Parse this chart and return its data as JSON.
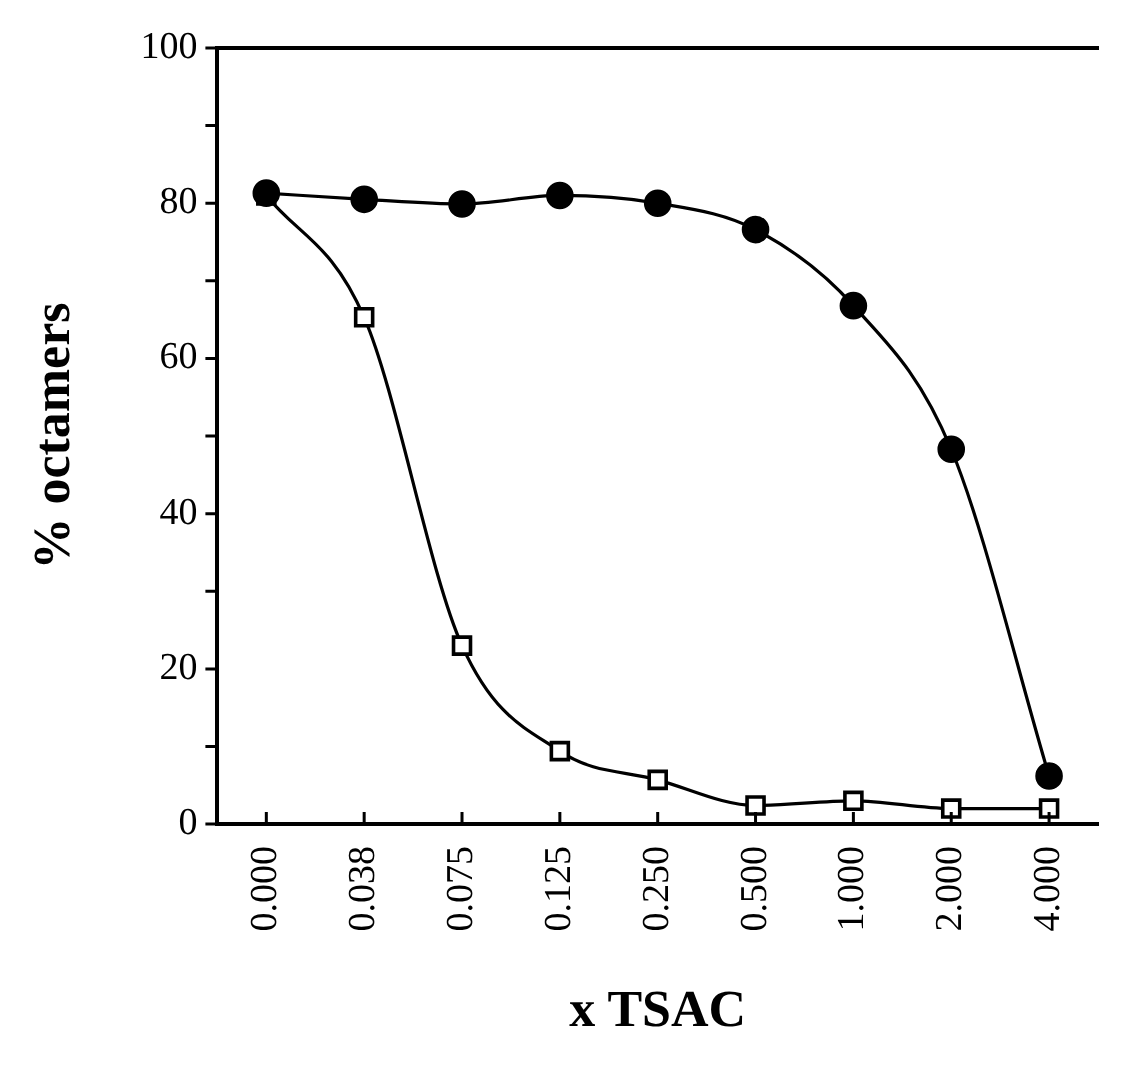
{
  "chart_data": {
    "type": "line",
    "xlabel": "x TSAC",
    "ylabel": "% octamers",
    "categories": [
      "0.000",
      "0.038",
      "0.075",
      "0.125",
      "0.250",
      "0.500",
      "1.000",
      "2.000",
      "4.000"
    ],
    "series": [
      {
        "color": "#000000",
        "marker": "circle",
        "values": [
          81.3,
          80.5,
          79.9,
          81,
          80,
          76.6,
          66.8,
          48.3,
          6.2
        ]
      },
      {
        "color": "#000000",
        "marker": "square",
        "values": [
          81,
          65.3,
          23,
          9.4,
          5.7,
          2.4,
          3,
          2,
          2
        ]
      }
    ],
    "ylim": [
      0,
      100
    ],
    "yticks": [
      0,
      {
        "value": 10,
        "label": null
      },
      20,
      {
        "value": 30,
        "label": null
      },
      40,
      {
        "value": 50,
        "label": null
      },
      60,
      {
        "value": 70,
        "label": null
      },
      80,
      {
        "value": 90,
        "label": null
      },
      100
    ],
    "grid": false,
    "legend": false,
    "line_style": "solid"
  }
}
